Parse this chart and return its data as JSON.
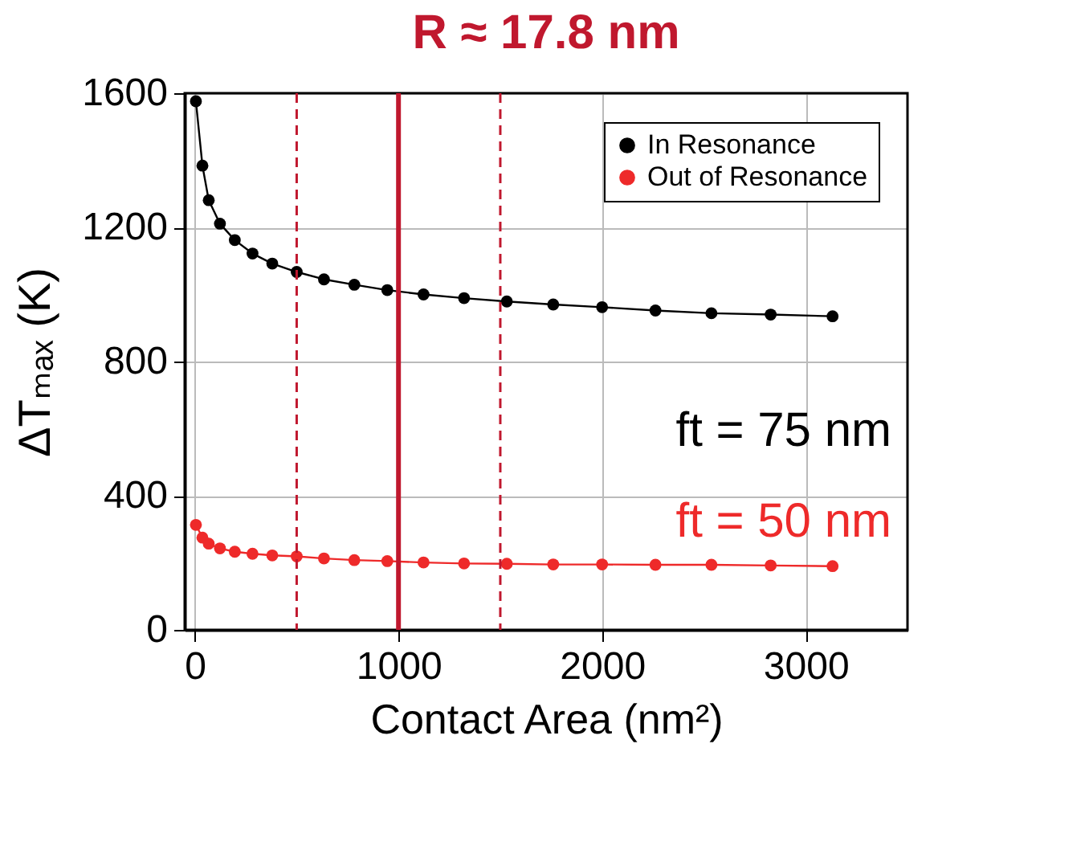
{
  "chart_data": {
    "type": "line",
    "title": "R ≈ 17.8 nm",
    "xlabel": "Contact Area (nm²)",
    "ylabel": "ΔTₘₐₓ (K)",
    "x": [
      5,
      37,
      68,
      123,
      196,
      283,
      380,
      500,
      634,
      783,
      945,
      1123,
      1322,
      1532,
      1760,
      2000,
      2262,
      2537,
      2828,
      3132
    ],
    "series": [
      {
        "name": "In Resonance",
        "color": "#000000",
        "values": [
          1576,
          1384,
          1281,
          1211,
          1162,
          1122,
          1092,
          1067,
          1045,
          1029,
          1013,
          1000,
          989,
          979,
          970,
          962,
          952,
          944,
          940,
          935
        ]
      },
      {
        "name": "Out of Resonance",
        "color": "#ee2a2a",
        "values": [
          313,
          275,
          257,
          243,
          233,
          227,
          222,
          219,
          213,
          208,
          205,
          201,
          198,
          197,
          195,
          195,
          194,
          194,
          192,
          190
        ]
      }
    ],
    "xlim": [
      -50,
      3500
    ],
    "xticks": [
      0,
      1000,
      2000,
      3000
    ],
    "ylim": [
      0,
      1600
    ],
    "yticks": [
      0,
      400,
      800,
      1200,
      1600
    ],
    "ref_lines": [
      {
        "axis": "x",
        "value": 500,
        "color": "#c0182e",
        "line_style": "dashed"
      },
      {
        "axis": "x",
        "value": 1000,
        "color": "#c0182e",
        "line_style": "solid"
      },
      {
        "axis": "x",
        "value": 1500,
        "color": "#c0182e",
        "line_style": "dashed"
      }
    ],
    "annotations": [
      "ft = 75 nm",
      "ft = 50 nm"
    ],
    "grid": true,
    "legend": "top right",
    "marker": "circle",
    "line_style": "solid"
  }
}
